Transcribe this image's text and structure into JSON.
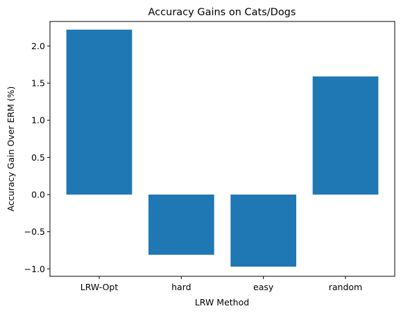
{
  "chart_data": {
    "type": "bar",
    "title": "Accuracy Gains on Cats/Dogs",
    "xlabel": "LRW Method",
    "ylabel": "Accuracy Gain Over ERM (%)",
    "categories": [
      "LRW-Opt",
      "hard",
      "easy",
      "random"
    ],
    "values": [
      2.22,
      -0.81,
      -0.97,
      1.59
    ],
    "ylim": [
      -1.1,
      2.33
    ],
    "yticks": [
      -1.0,
      -0.5,
      0.0,
      0.5,
      1.0,
      1.5,
      2.0
    ],
    "ytick_labels": [
      "−1.0",
      "−0.5",
      "0.0",
      "0.5",
      "1.0",
      "1.5",
      "2.0"
    ],
    "bar_color": "#1f77b4",
    "grid": false
  }
}
